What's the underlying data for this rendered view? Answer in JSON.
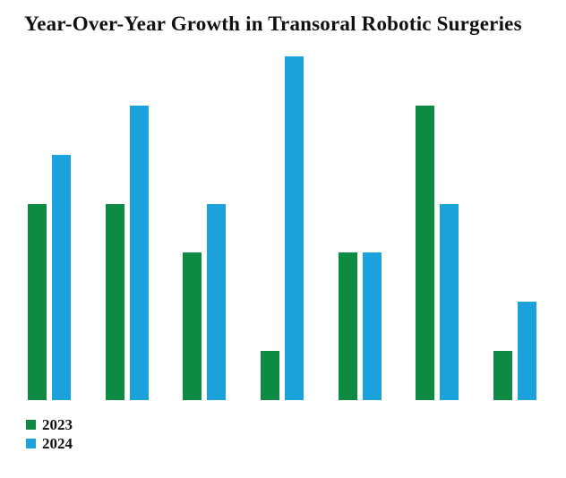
{
  "title": "Year-Over-Year Growth in Transoral Robotic Surgeries",
  "colors": {
    "series_2023": "#0e8b43",
    "series_2024": "#1ba1dc",
    "background": "#ffffff",
    "text": "#111111"
  },
  "legend": {
    "items": [
      {
        "label": "2023",
        "color": "#0e8b43"
      },
      {
        "label": "2024",
        "color": "#1ba1dc"
      }
    ]
  },
  "chart_data": {
    "type": "bar",
    "title": "Year-Over-Year Growth in Transoral Robotic Surgeries",
    "categories": [
      "",
      "",
      "",
      "",
      "",
      "",
      ""
    ],
    "series": [
      {
        "name": "2023",
        "color": "#0e8b43",
        "values": [
          4,
          4,
          3,
          1,
          3,
          6,
          1
        ]
      },
      {
        "name": "2024",
        "color": "#1ba1dc",
        "values": [
          5,
          6,
          4,
          7,
          3,
          4,
          2
        ]
      }
    ],
    "xlabel": "",
    "ylabel": "",
    "ylim": [
      0,
      7
    ],
    "grid": false,
    "axes_visible": false,
    "tick_labels_visible": false,
    "legend_position": "bottom-left"
  }
}
